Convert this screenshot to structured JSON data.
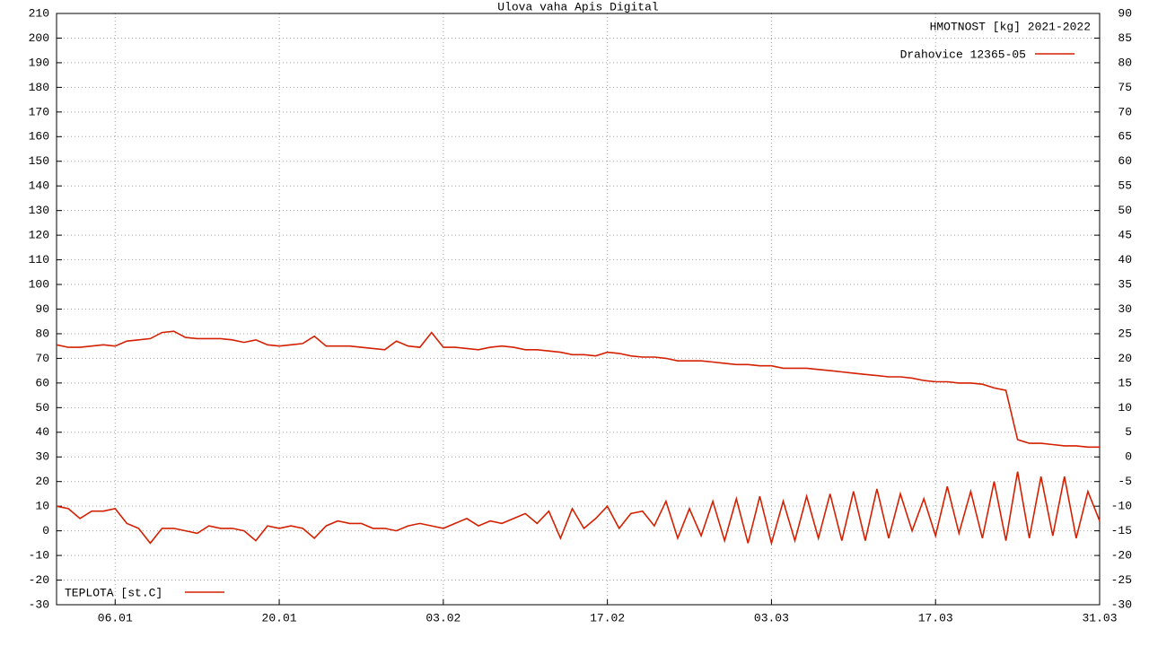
{
  "chart_data": {
    "type": "line",
    "title": "Ulova vaha Apis Digital",
    "legend_title": "HMOTNOST [kg] 2021-2022",
    "categories": [
      null,
      null,
      null,
      null,
      null,
      "06.01",
      null,
      null,
      null,
      null,
      null,
      null,
      null,
      null,
      null,
      null,
      null,
      null,
      null,
      "20.01",
      null,
      null,
      null,
      null,
      null,
      null,
      null,
      null,
      null,
      null,
      null,
      null,
      null,
      "03.02",
      null,
      null,
      null,
      null,
      null,
      null,
      null,
      null,
      null,
      null,
      null,
      null,
      null,
      "17.02",
      null,
      null,
      null,
      null,
      null,
      null,
      null,
      null,
      null,
      null,
      null,
      null,
      null,
      "03.03",
      null,
      null,
      null,
      null,
      null,
      null,
      null,
      null,
      null,
      null,
      null,
      null,
      null,
      "17.03",
      null,
      null,
      null,
      null,
      null,
      null,
      null,
      null,
      null,
      null,
      null,
      null,
      null,
      "31.03"
    ],
    "series": [
      {
        "name": "Drahovice 12365-05",
        "color": "#d42000",
        "legend": "top-right",
        "values": [
          75.5,
          74.5,
          74.5,
          75,
          75.5,
          75,
          77,
          77.5,
          78,
          80.5,
          81,
          78.5,
          78,
          78,
          78,
          77.5,
          76.5,
          77.5,
          75.5,
          75,
          75.5,
          76,
          79,
          75,
          75,
          75,
          74.5,
          74,
          73.5,
          77,
          75,
          74.5,
          80.5,
          74.5,
          74.5,
          74,
          73.5,
          74.5,
          75,
          74.5,
          73.5,
          73.5,
          73,
          72.5,
          71.5,
          71.5,
          71,
          72.5,
          72,
          71,
          70.5,
          70.5,
          70,
          69,
          69,
          69,
          68.5,
          68,
          67.5,
          67.5,
          67,
          67,
          66,
          66,
          66,
          65.5,
          65,
          64.5,
          64,
          63.5,
          63,
          62.5,
          62.5,
          62,
          61,
          60.5,
          60.5,
          60,
          60,
          59.5,
          58,
          57,
          37,
          35.5,
          35.5,
          35,
          34.5,
          34.5,
          34,
          34
        ]
      },
      {
        "name": "TEPLOTA [st.C]",
        "color": "#d42000",
        "legend": "bottom-left",
        "values": [
          10,
          9,
          5,
          8,
          8,
          9,
          3,
          1,
          -5,
          1,
          1,
          0,
          -1,
          2,
          1,
          1,
          0,
          -4,
          2,
          1,
          2,
          1,
          -3,
          2,
          4,
          3,
          3,
          1,
          1,
          0,
          2,
          3,
          2,
          1,
          3,
          5,
          2,
          4,
          3,
          5,
          7,
          3,
          8,
          -3,
          9,
          1,
          5,
          10,
          1,
          7,
          8,
          2,
          12,
          -3,
          9,
          -2,
          12,
          -4,
          13,
          -5,
          14,
          -5,
          12,
          -4,
          14,
          -3,
          15,
          -4,
          16,
          -4,
          17,
          -3,
          15,
          0,
          13,
          -2,
          18,
          -1,
          16,
          -3,
          20,
          -4,
          24,
          -3,
          22,
          -2,
          22,
          -3,
          16,
          4
        ]
      }
    ],
    "ylim": [
      -30,
      210
    ],
    "yticks": [
      -30,
      -20,
      -10,
      0,
      10,
      20,
      30,
      40,
      50,
      60,
      70,
      80,
      90,
      100,
      110,
      120,
      130,
      140,
      150,
      160,
      170,
      180,
      190,
      200,
      210
    ],
    "y2lim": [
      -30,
      90
    ],
    "y2ticks": [
      -30,
      -25,
      -20,
      -15,
      -10,
      -5,
      0,
      5,
      10,
      15,
      20,
      25,
      30,
      35,
      40,
      45,
      50,
      55,
      60,
      65,
      70,
      75,
      80,
      85,
      90
    ],
    "grid": true
  }
}
